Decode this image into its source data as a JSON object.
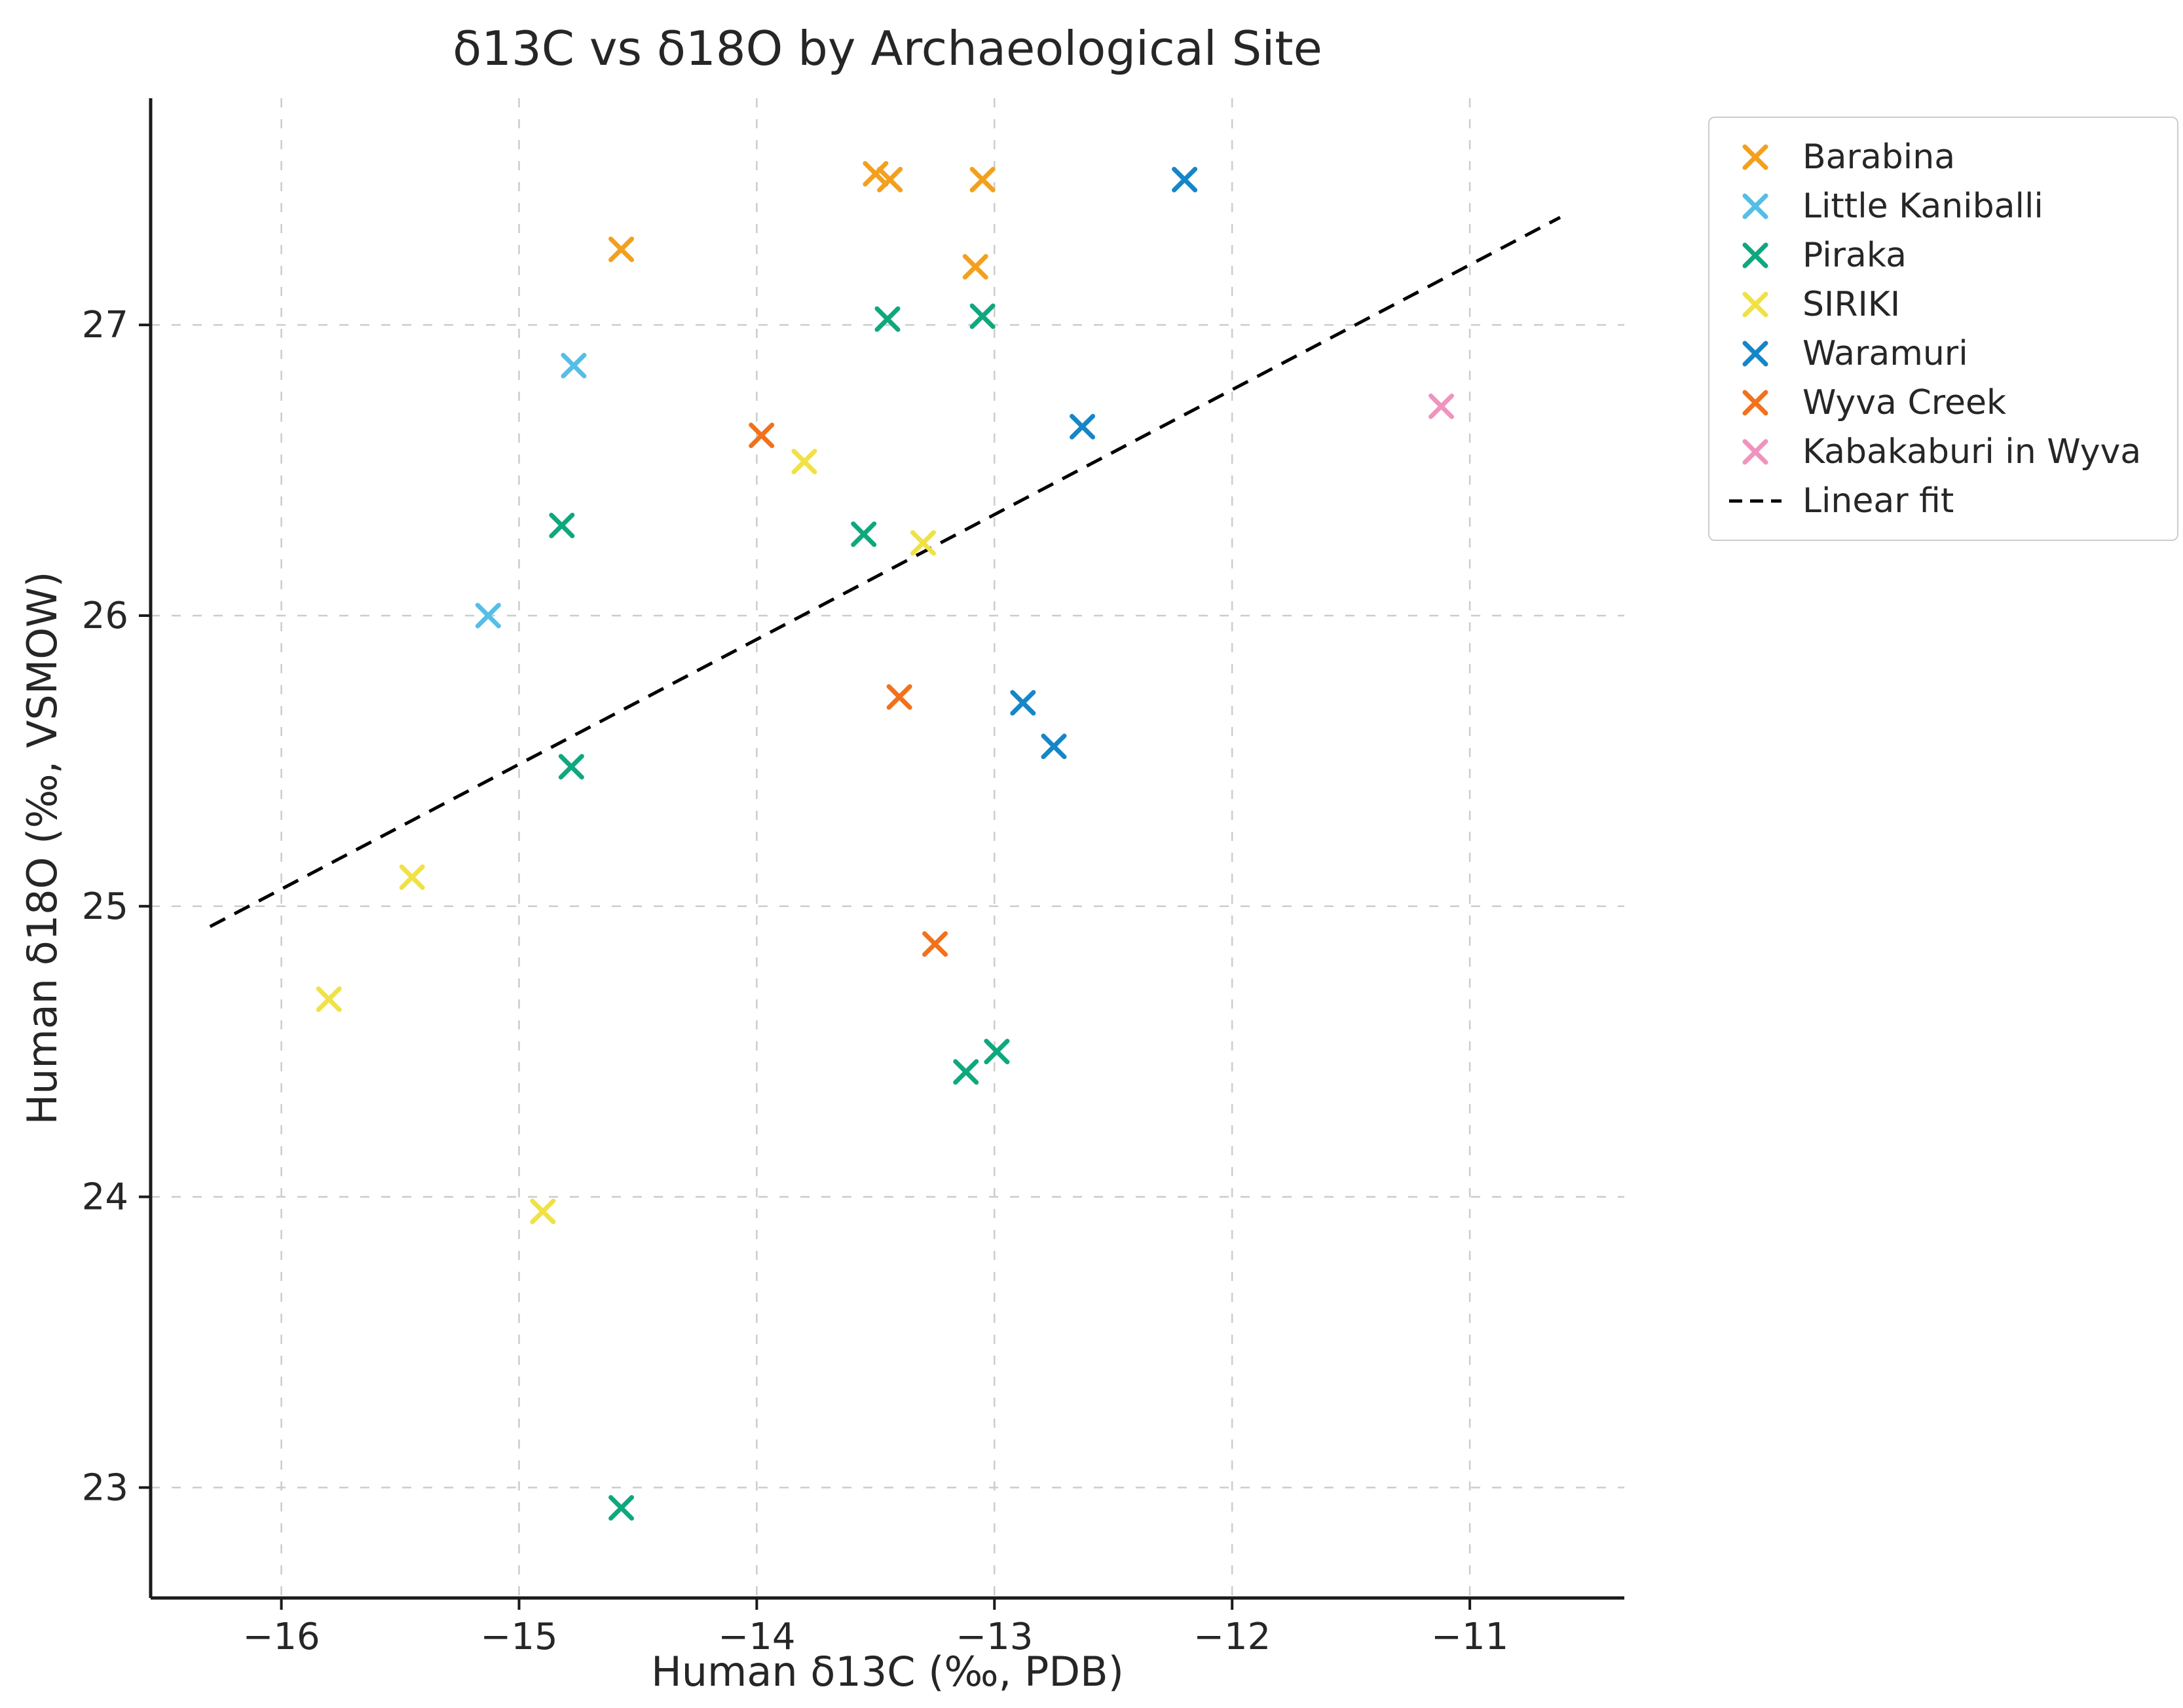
{
  "chart_data": {
    "type": "scatter",
    "title": "δ13C vs δ18O by Archaeological Site",
    "xlabel": "Human δ13C (‰, PDB)",
    "ylabel": "Human δ18O (‰, VSMOW)",
    "xlim": [
      -16.55,
      -10.35
    ],
    "ylim": [
      22.62,
      27.78
    ],
    "xticks": {
      "values": [
        -16,
        -15,
        -14,
        -13,
        -12,
        -11
      ],
      "labels": [
        "−16",
        "−15",
        "−14",
        "−13",
        "−12",
        "−11"
      ]
    },
    "yticks": {
      "values": [
        23,
        24,
        25,
        26,
        27
      ],
      "labels": [
        "23",
        "24",
        "25",
        "26",
        "27"
      ]
    },
    "grid": true,
    "marker": "x",
    "legend_position": "outside-right-top",
    "series": [
      {
        "name": "Barabina",
        "color": "#F3A01E",
        "points": [
          [
            -13.5,
            27.52
          ],
          [
            -13.44,
            27.5
          ],
          [
            -13.05,
            27.5
          ],
          [
            -14.57,
            27.26
          ],
          [
            -13.08,
            27.2
          ]
        ]
      },
      {
        "name": "Little Kaniballi",
        "color": "#55BEE6",
        "points": [
          [
            -14.77,
            26.86
          ],
          [
            -15.13,
            26.0
          ]
        ]
      },
      {
        "name": "Piraka",
        "color": "#0FA87E",
        "points": [
          [
            -13.45,
            27.02
          ],
          [
            -13.05,
            27.03
          ],
          [
            -14.82,
            26.31
          ],
          [
            -13.55,
            26.28
          ],
          [
            -14.78,
            25.48
          ],
          [
            -13.12,
            24.43
          ],
          [
            -12.99,
            24.5
          ],
          [
            -14.57,
            22.93
          ]
        ]
      },
      {
        "name": "SIRIKI",
        "color": "#F0E146",
        "points": [
          [
            -13.8,
            26.53
          ],
          [
            -13.3,
            26.25
          ],
          [
            -15.45,
            25.1
          ],
          [
            -15.8,
            24.68
          ],
          [
            -14.9,
            23.95
          ]
        ]
      },
      {
        "name": "Waramuri",
        "color": "#1586C8",
        "points": [
          [
            -12.2,
            27.5
          ],
          [
            -12.63,
            26.65
          ],
          [
            -12.88,
            25.7
          ],
          [
            -12.75,
            25.55
          ]
        ]
      },
      {
        "name": "Wyva Creek",
        "color": "#F2711D",
        "points": [
          [
            -13.98,
            26.62
          ],
          [
            -13.4,
            25.72
          ],
          [
            -13.25,
            24.87
          ]
        ]
      },
      {
        "name": "Kabakaburi in Wyva",
        "color": "#F093BE",
        "points": [
          [
            -11.12,
            26.72
          ]
        ]
      }
    ],
    "fit_line": {
      "label": "Linear fit",
      "color": "#000000",
      "style": "dashed",
      "x": [
        -16.3,
        -10.62
      ],
      "y": [
        24.93,
        27.37
      ]
    }
  }
}
